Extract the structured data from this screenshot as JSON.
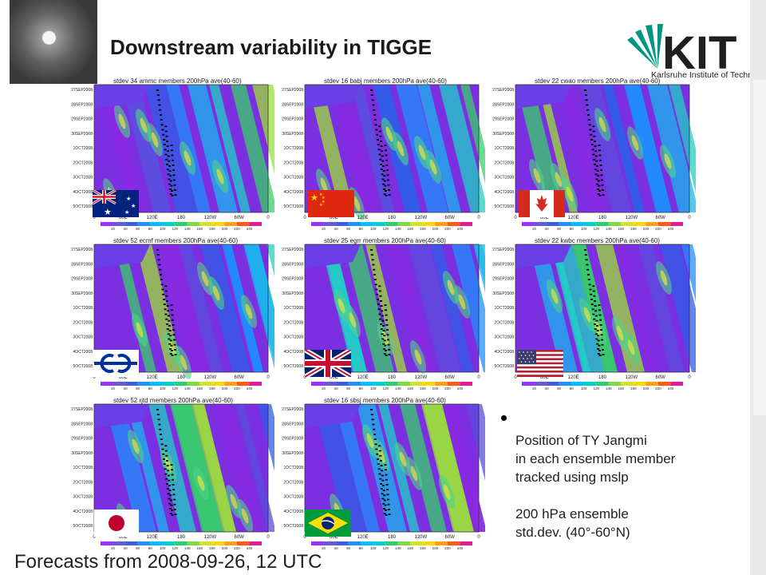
{
  "slide": {
    "title": "Downstream variability in TIGGE",
    "logo_text": "KIT",
    "logo_subtitle": "Karlsruhe Institute of Technology",
    "footer": "Forecasts from 2008-09-26, 12 UTC",
    "notes": {
      "bullet": "•",
      "lines": [
        "Position of TY Jangmi",
        "in each ensemble member",
        "tracked using mslp",
        "",
        "200 hPa ensemble",
        "std.dev. (40°-60°N)"
      ]
    }
  },
  "axes": {
    "y_labels": [
      "27SEP2008",
      "28SEP2008",
      "29SEP2008",
      "30SEP2008",
      "1OCT2008",
      "2OCT2008",
      "3OCT2008",
      "4OCT2008",
      "5OCT2008"
    ],
    "x_labels": [
      "0",
      "60E",
      "120E",
      "180",
      "120W",
      "60W",
      "0"
    ],
    "colorbar_labels": [
      "20",
      "40",
      "60",
      "80",
      "100",
      "120",
      "140",
      "160",
      "180",
      "200",
      "220",
      "240"
    ],
    "colorbar_colors": [
      "#9b30ff",
      "#6a5acd",
      "#3a5fe0",
      "#1e90ff",
      "#00bfff",
      "#00ced1",
      "#2ecc71",
      "#7fdc40",
      "#d4e22a",
      "#ffd700",
      "#ff9f1a",
      "#ff5a1a",
      "#e6199a"
    ]
  },
  "panels": [
    {
      "title": "stdev 34 ammc members 200hPa ave(40-60)",
      "flag": "australia"
    },
    {
      "title": "stdev 16 babj members 200hPa ave(40-60)",
      "flag": "china"
    },
    {
      "title": "stdev 22 cwao members 200hPa ave(40-60)",
      "flag": "canada"
    },
    {
      "title": "stdev 52 ecmf members 200hPa ave(40-60)",
      "flag": "ecmwf"
    },
    {
      "title": "stdev 25 egrr members 200hPa ave(40-60)",
      "flag": "uk"
    },
    {
      "title": "stdev 22 kwbc members 200hPa ave(40-60)",
      "flag": "usa"
    },
    {
      "title": "stdev 52 rjtd members 200hPa ave(40-60)",
      "flag": "japan"
    },
    {
      "title": "stdev 16 sbsj members 200hPa ave(40-60)",
      "flag": "brazil"
    }
  ]
}
